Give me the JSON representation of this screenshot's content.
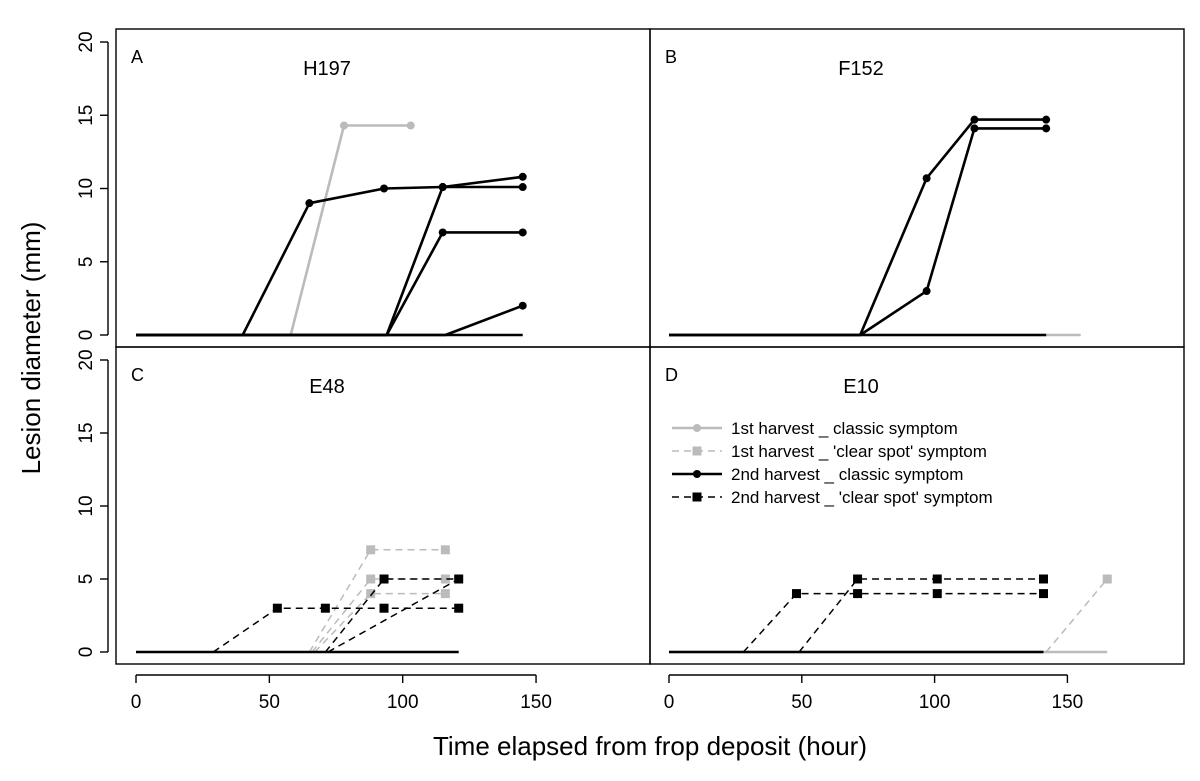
{
  "chart_data": {
    "type": "line",
    "xlabel": "Time elapsed from frop deposit (hour)",
    "ylabel": "Lesion diameter (mm)",
    "xlim": [
      -10,
      190
    ],
    "ylim": [
      -1,
      20
    ],
    "xticks": [
      0,
      50,
      100,
      150
    ],
    "yticks": [
      0,
      5,
      10,
      15,
      20
    ],
    "legend": {
      "placement": "panel D, upper-left",
      "entries": [
        {
          "label": "1st harvest _ classic symptom",
          "color": "#bbbbbb",
          "dash": "solid",
          "marker": "circle"
        },
        {
          "label": "1st harvest _ 'clear spot' symptom",
          "color": "#bbbbbb",
          "dash": "dashed",
          "marker": "square"
        },
        {
          "label": "2nd harvest _ classic symptom",
          "color": "#000000",
          "dash": "solid",
          "marker": "circle"
        },
        {
          "label": "2nd harvest _ 'clear spot' symptom",
          "color": "#000000",
          "dash": "dashed",
          "marker": "square"
        }
      ]
    },
    "panels": [
      {
        "letter": "A",
        "title": "H197",
        "series": [
          {
            "group": 0,
            "points": [
              [
                0,
                0
              ],
              [
                58,
                0
              ],
              [
                78,
                14.3
              ],
              [
                103,
                14.3
              ]
            ],
            "markers": [
              [
                78,
                14.3
              ],
              [
                103,
                14.3
              ]
            ]
          },
          {
            "group": 2,
            "points": [
              [
                0,
                0
              ],
              [
                40,
                0
              ],
              [
                65,
                9
              ],
              [
                93,
                10
              ],
              [
                115,
                10.1
              ],
              [
                145,
                10.1
              ]
            ],
            "markers": [
              [
                65,
                9
              ],
              [
                93,
                10
              ],
              [
                115,
                10.1
              ],
              [
                145,
                10.1
              ]
            ]
          },
          {
            "group": 2,
            "points": [
              [
                0,
                0
              ],
              [
                94,
                0
              ],
              [
                115,
                10.1
              ],
              [
                145,
                10.8
              ]
            ],
            "markers": [
              [
                115,
                10.1
              ],
              [
                145,
                10.8
              ]
            ]
          },
          {
            "group": 2,
            "points": [
              [
                0,
                0
              ],
              [
                94,
                0
              ],
              [
                115,
                7
              ],
              [
                145,
                7
              ]
            ],
            "markers": [
              [
                115,
                7
              ],
              [
                145,
                7
              ]
            ]
          },
          {
            "group": 2,
            "points": [
              [
                0,
                0
              ],
              [
                116,
                0
              ],
              [
                145,
                2
              ]
            ],
            "markers": [
              [
                145,
                2
              ]
            ]
          },
          {
            "group": 2,
            "points": [
              [
                0,
                0
              ],
              [
                145,
                0
              ]
            ],
            "markers": []
          }
        ]
      },
      {
        "letter": "B",
        "title": "F152",
        "series": [
          {
            "group": 0,
            "points": [
              [
                0,
                0
              ],
              [
                155,
                0
              ]
            ],
            "markers": []
          },
          {
            "group": 2,
            "points": [
              [
                0,
                0
              ],
              [
                72,
                0
              ],
              [
                97,
                10.7
              ],
              [
                115,
                14.7
              ],
              [
                142,
                14.7
              ]
            ],
            "markers": [
              [
                97,
                10.7
              ],
              [
                115,
                14.7
              ],
              [
                142,
                14.7
              ]
            ]
          },
          {
            "group": 2,
            "points": [
              [
                0,
                0
              ],
              [
                72,
                0
              ],
              [
                97,
                3
              ],
              [
                115,
                14.1
              ],
              [
                142,
                14.1
              ]
            ],
            "markers": [
              [
                97,
                3
              ],
              [
                115,
                14.1
              ],
              [
                142,
                14.1
              ]
            ]
          },
          {
            "group": 2,
            "points": [
              [
                0,
                0
              ],
              [
                142,
                0
              ]
            ],
            "markers": []
          }
        ]
      },
      {
        "letter": "C",
        "title": "E48",
        "series": [
          {
            "group": 1,
            "points": [
              [
                65,
                0
              ],
              [
                88,
                7
              ],
              [
                116,
                7
              ]
            ],
            "markers": [
              [
                88,
                7
              ],
              [
                116,
                7
              ]
            ]
          },
          {
            "group": 1,
            "points": [
              [
                66,
                0
              ],
              [
                88,
                5
              ],
              [
                116,
                5
              ]
            ],
            "markers": [
              [
                88,
                5
              ],
              [
                116,
                5
              ]
            ]
          },
          {
            "group": 1,
            "points": [
              [
                67,
                0
              ],
              [
                88,
                4
              ],
              [
                116,
                4
              ]
            ],
            "markers": [
              [
                88,
                4
              ],
              [
                116,
                4
              ]
            ]
          },
          {
            "group": 3,
            "points": [
              [
                29,
                0
              ],
              [
                53,
                3
              ],
              [
                71,
                3
              ],
              [
                93,
                3
              ],
              [
                121,
                3
              ]
            ],
            "markers": [
              [
                53,
                3
              ],
              [
                71,
                3
              ],
              [
                93,
                3
              ],
              [
                121,
                3
              ]
            ]
          },
          {
            "group": 3,
            "points": [
              [
                71,
                0
              ],
              [
                93,
                5
              ],
              [
                121,
                5
              ]
            ],
            "markers": [
              [
                93,
                5
              ],
              [
                121,
                5
              ]
            ]
          },
          {
            "group": 3,
            "points": [
              [
                72,
                0
              ],
              [
                121,
                5
              ]
            ],
            "markers": []
          },
          {
            "group": 2,
            "points": [
              [
                0,
                0
              ],
              [
                121,
                0
              ]
            ],
            "markers": []
          }
        ]
      },
      {
        "letter": "D",
        "title": "E10",
        "series": [
          {
            "group": 0,
            "points": [
              [
                0,
                0
              ],
              [
                165,
                0
              ]
            ],
            "markers": []
          },
          {
            "group": 1,
            "points": [
              [
                142,
                0
              ],
              [
                165,
                5
              ]
            ],
            "markers": [
              [
                165,
                5
              ]
            ]
          },
          {
            "group": 3,
            "points": [
              [
                28,
                0
              ],
              [
                48,
                4
              ],
              [
                71,
                4
              ],
              [
                101,
                4
              ],
              [
                141,
                4
              ]
            ],
            "markers": [
              [
                48,
                4
              ],
              [
                71,
                4
              ],
              [
                101,
                4
              ],
              [
                141,
                4
              ]
            ]
          },
          {
            "group": 3,
            "points": [
              [
                49,
                0
              ],
              [
                71,
                5
              ],
              [
                101,
                5
              ],
              [
                141,
                5
              ]
            ],
            "markers": [
              [
                71,
                5
              ],
              [
                101,
                5
              ],
              [
                141,
                5
              ]
            ]
          },
          {
            "group": 2,
            "points": [
              [
                0,
                0
              ],
              [
                141,
                0
              ]
            ],
            "markers": []
          }
        ]
      }
    ]
  }
}
